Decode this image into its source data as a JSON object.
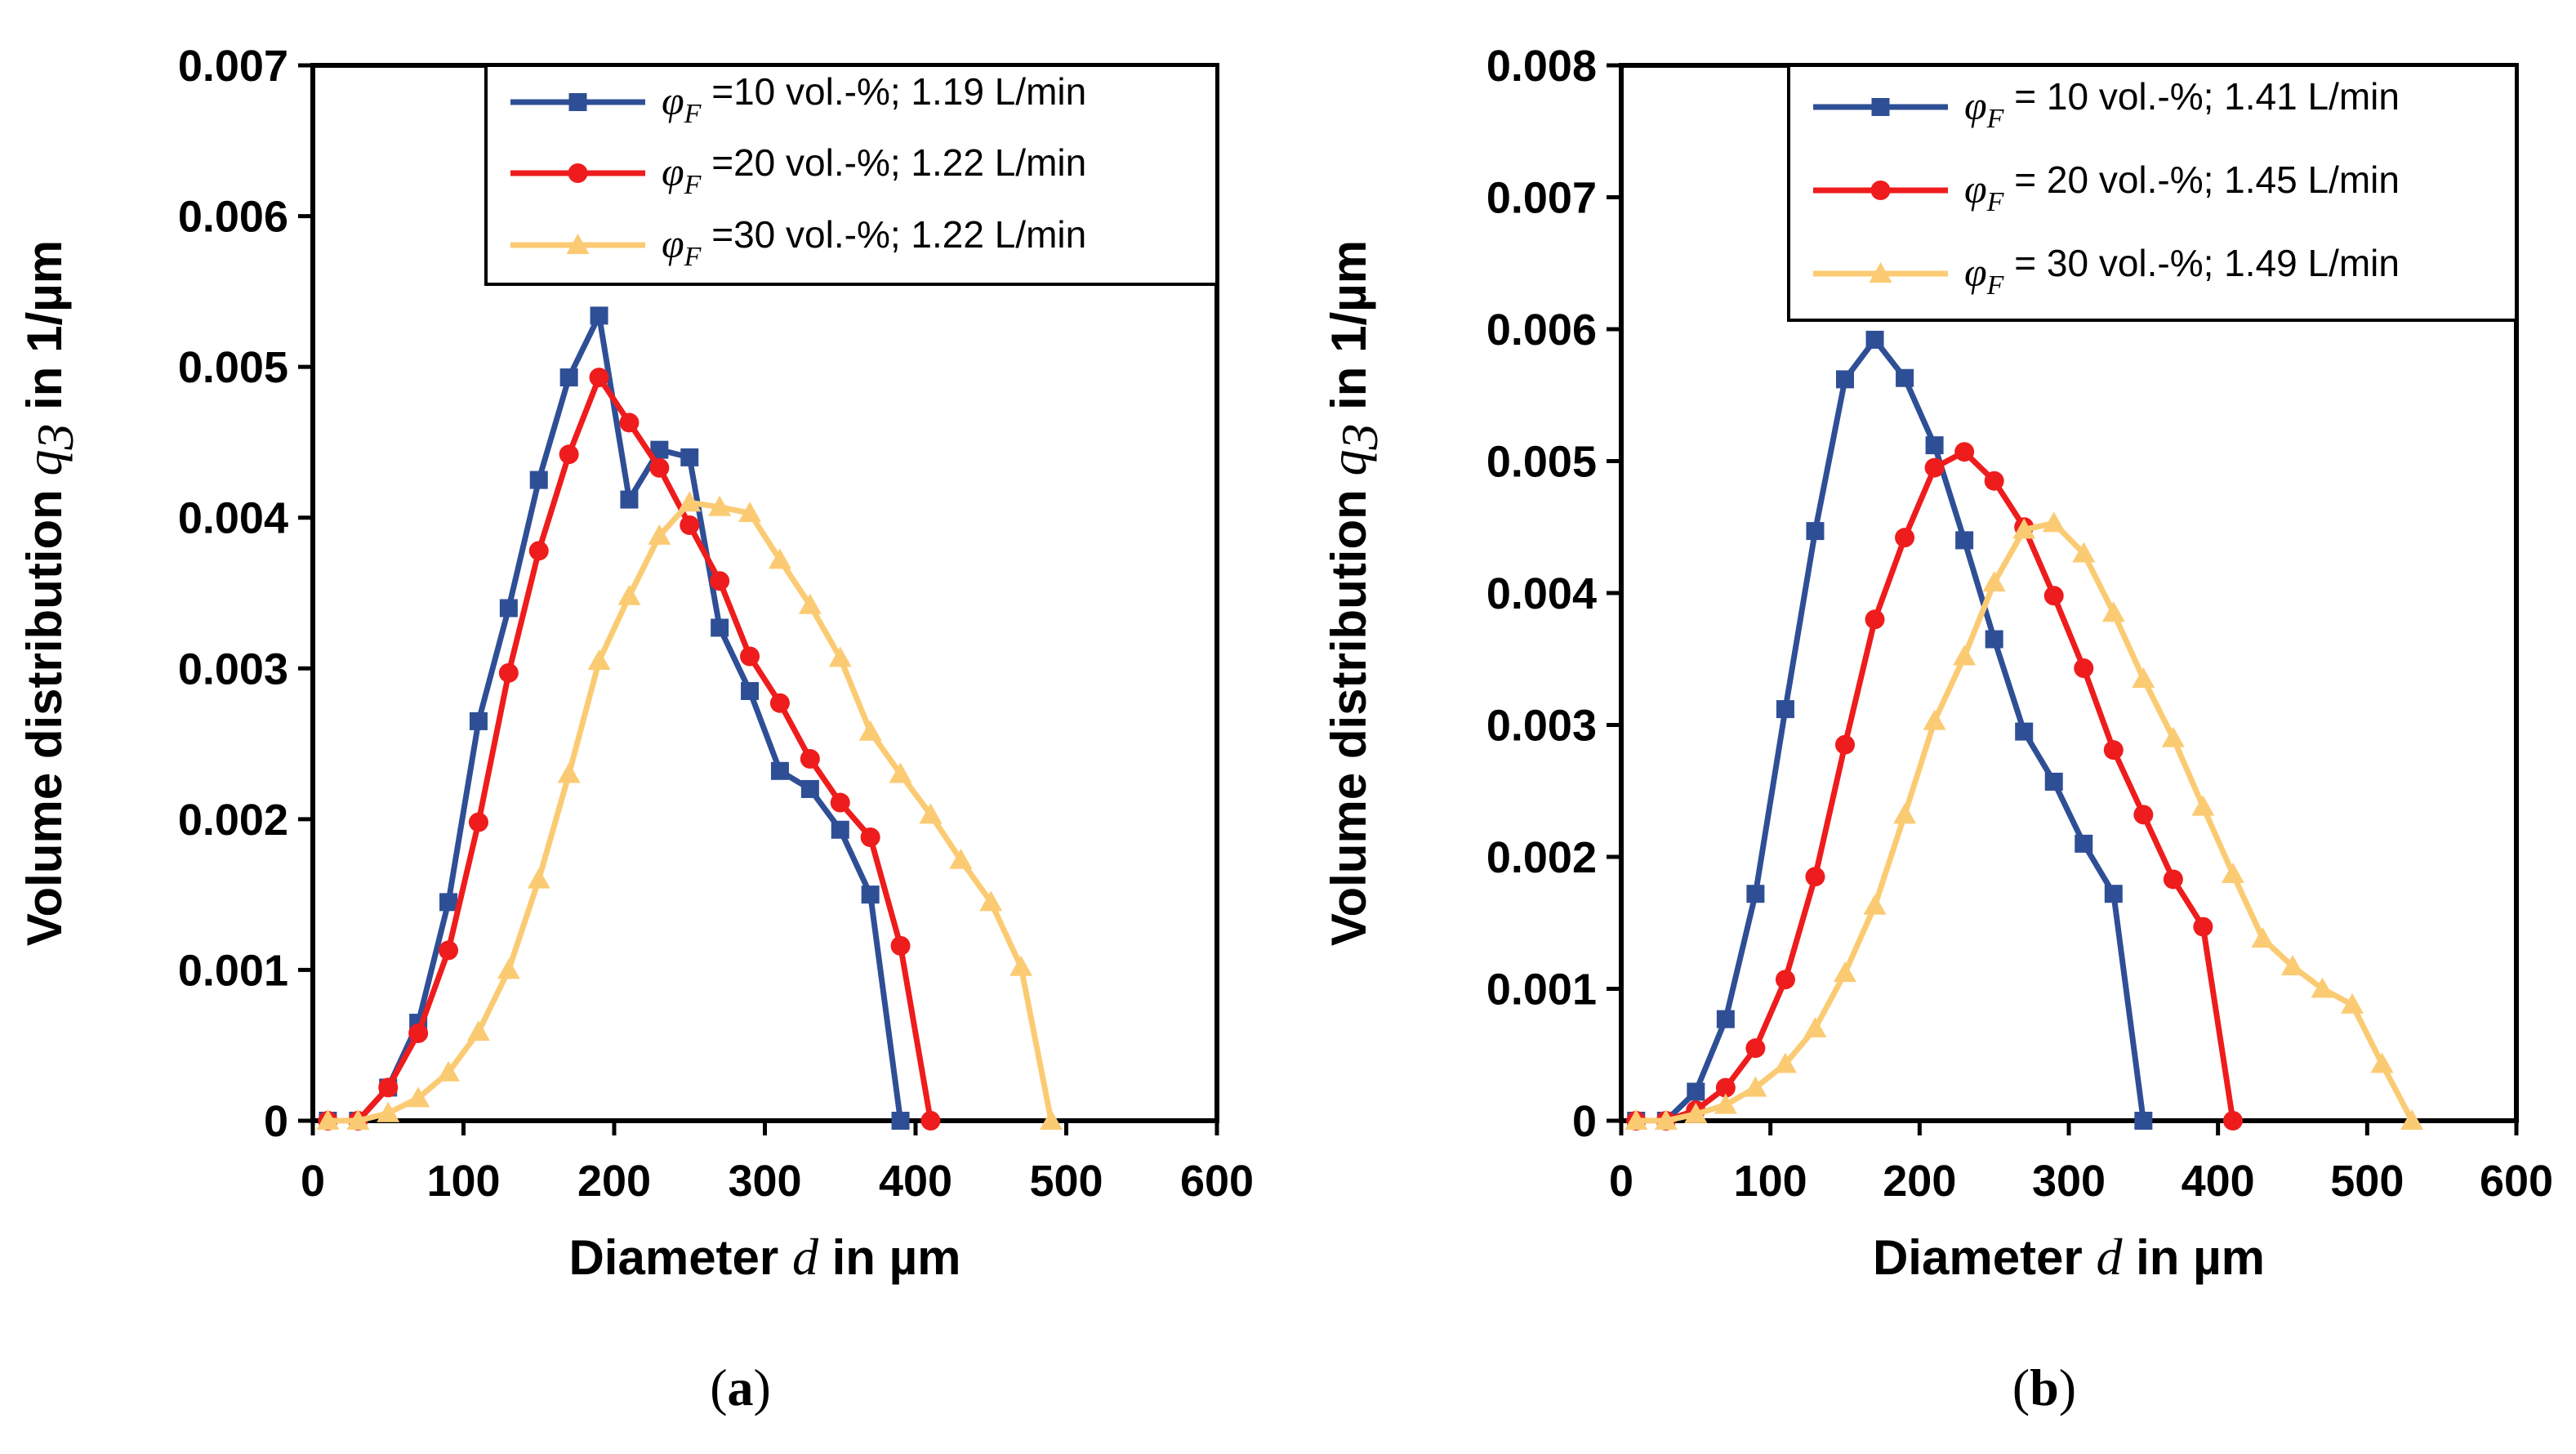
{
  "chart_data": [
    {
      "type": "line",
      "panel_label_parts": [
        "(",
        "a",
        ")"
      ],
      "xlabel_parts": [
        "Diameter ",
        "d",
        " in µm"
      ],
      "ylabel_parts": [
        "Volume distribution ",
        "q",
        "3",
        " in 1/µm"
      ],
      "xlim": [
        0,
        600
      ],
      "ylim": [
        0,
        0.007
      ],
      "xticks": [
        0,
        100,
        200,
        300,
        400,
        500,
        600
      ],
      "xtick_labels": [
        "0",
        "100",
        "200",
        "300",
        "400",
        "500",
        "600"
      ],
      "yticks": [
        0,
        0.001,
        0.002,
        0.003,
        0.004,
        0.005,
        0.006,
        0.007
      ],
      "ytick_labels": [
        "0",
        "0.001",
        "0.002",
        "0.003",
        "0.004",
        "0.005",
        "0.006",
        "0.007"
      ],
      "legend_position": "top-right",
      "series": [
        {
          "name_prefix": "φ",
          "name_sub": "F",
          "name_rest": " =10 vol.-%; 1.19 L/min",
          "color": "#2E4F96",
          "marker": "square",
          "x": [
            10,
            30,
            50,
            70,
            90,
            110,
            130,
            150,
            170,
            190,
            210,
            230,
            250,
            270,
            290,
            310,
            330,
            350,
            370,
            390
          ],
          "y": [
            0,
            0,
            0.00022,
            0.00065,
            0.00145,
            0.00265,
            0.0034,
            0.00425,
            0.00493,
            0.00534,
            0.00412,
            0.00445,
            0.0044,
            0.00327,
            0.00285,
            0.00232,
            0.0022,
            0.00193,
            0.0015,
            0
          ]
        },
        {
          "name_prefix": "φ",
          "name_sub": "F",
          "name_rest": " =20 vol.-%; 1.22 L/min",
          "color": "#EE1C1C",
          "marker": "circle",
          "x": [
            10,
            30,
            50,
            70,
            90,
            110,
            130,
            150,
            170,
            190,
            210,
            230,
            250,
            270,
            290,
            310,
            330,
            350,
            370,
            390,
            410
          ],
          "y": [
            0,
            0,
            0.00022,
            0.00058,
            0.00113,
            0.00198,
            0.00297,
            0.00378,
            0.00442,
            0.00493,
            0.00463,
            0.00433,
            0.00395,
            0.00358,
            0.00308,
            0.00277,
            0.0024,
            0.00211,
            0.00188,
            0.00116,
            0
          ]
        },
        {
          "name_prefix": "φ",
          "name_sub": "F",
          "name_rest": " =30 vol.-%; 1.22 L/min",
          "color": "#FBCB73",
          "marker": "triangle",
          "x": [
            10,
            30,
            50,
            70,
            90,
            110,
            130,
            150,
            170,
            190,
            210,
            230,
            250,
            270,
            290,
            310,
            330,
            350,
            370,
            390,
            410,
            430,
            450,
            470,
            490
          ],
          "y": [
            0,
            0,
            5e-05,
            0.00015,
            0.00032,
            0.00059,
            0.001,
            0.0016,
            0.0023,
            0.00305,
            0.00348,
            0.00388,
            0.0041,
            0.00407,
            0.00403,
            0.00372,
            0.00342,
            0.00307,
            0.00258,
            0.0023,
            0.00203,
            0.00173,
            0.00145,
            0.00102,
            0
          ]
        }
      ]
    },
    {
      "type": "line",
      "panel_label_parts": [
        "(",
        "b",
        ")"
      ],
      "xlabel_parts": [
        "Diameter ",
        "d",
        " in µm"
      ],
      "ylabel_parts": [
        "Volume distribution ",
        "q",
        "3",
        " in 1/µm"
      ],
      "xlim": [
        0,
        600
      ],
      "ylim": [
        0,
        0.008
      ],
      "xticks": [
        0,
        100,
        200,
        300,
        400,
        500,
        600
      ],
      "xtick_labels": [
        "0",
        "100",
        "200",
        "300",
        "400",
        "500",
        "600"
      ],
      "yticks": [
        0,
        0.001,
        0.002,
        0.003,
        0.004,
        0.005,
        0.006,
        0.007,
        0.008
      ],
      "ytick_labels": [
        "0",
        "0.001",
        "0.002",
        "0.003",
        "0.004",
        "0.005",
        "0.006",
        "0.007",
        "0.008"
      ],
      "legend_position": "top-right",
      "series": [
        {
          "name_prefix": "φ",
          "name_sub": "F",
          "name_rest": " = 10 vol.-%; 1.41 L/min",
          "color": "#2E4F96",
          "marker": "square",
          "x": [
            10,
            30,
            50,
            70,
            90,
            110,
            130,
            150,
            170,
            190,
            210,
            230,
            250,
            270,
            290,
            310,
            330,
            350
          ],
          "y": [
            0,
            0,
            0.00022,
            0.00077,
            0.00172,
            0.00312,
            0.00447,
            0.00562,
            0.00592,
            0.00563,
            0.00512,
            0.0044,
            0.00365,
            0.00295,
            0.00257,
            0.0021,
            0.00172,
            0
          ]
        },
        {
          "name_prefix": "φ",
          "name_sub": "F",
          "name_rest": " = 20 vol.-%; 1.45 L/min",
          "color": "#EE1C1C",
          "marker": "circle",
          "x": [
            10,
            30,
            50,
            70,
            90,
            110,
            130,
            150,
            170,
            190,
            210,
            230,
            250,
            270,
            290,
            310,
            330,
            350,
            370,
            390,
            410
          ],
          "y": [
            0,
            0,
            8e-05,
            0.00025,
            0.00055,
            0.00107,
            0.00185,
            0.00285,
            0.0038,
            0.00442,
            0.00495,
            0.00507,
            0.00485,
            0.0045,
            0.00398,
            0.00343,
            0.00281,
            0.00232,
            0.00183,
            0.00147,
            0
          ]
        },
        {
          "name_prefix": "φ",
          "name_sub": "F",
          "name_rest": " = 30 vol.-%; 1.49 L/min",
          "color": "#FBCB73",
          "marker": "triangle",
          "x": [
            10,
            30,
            50,
            70,
            90,
            110,
            130,
            150,
            170,
            190,
            210,
            230,
            250,
            270,
            290,
            310,
            330,
            350,
            370,
            390,
            410,
            430,
            450,
            470,
            490,
            510,
            530
          ],
          "y": [
            0,
            0,
            5e-05,
            0.00012,
            0.00025,
            0.00043,
            0.0007,
            0.00112,
            0.00163,
            0.00232,
            0.00303,
            0.00352,
            0.00408,
            0.00448,
            0.00453,
            0.0043,
            0.00385,
            0.00335,
            0.0029,
            0.00238,
            0.00187,
            0.00138,
            0.00117,
            0.001,
            0.00088,
            0.00043,
            0
          ]
        }
      ]
    }
  ]
}
